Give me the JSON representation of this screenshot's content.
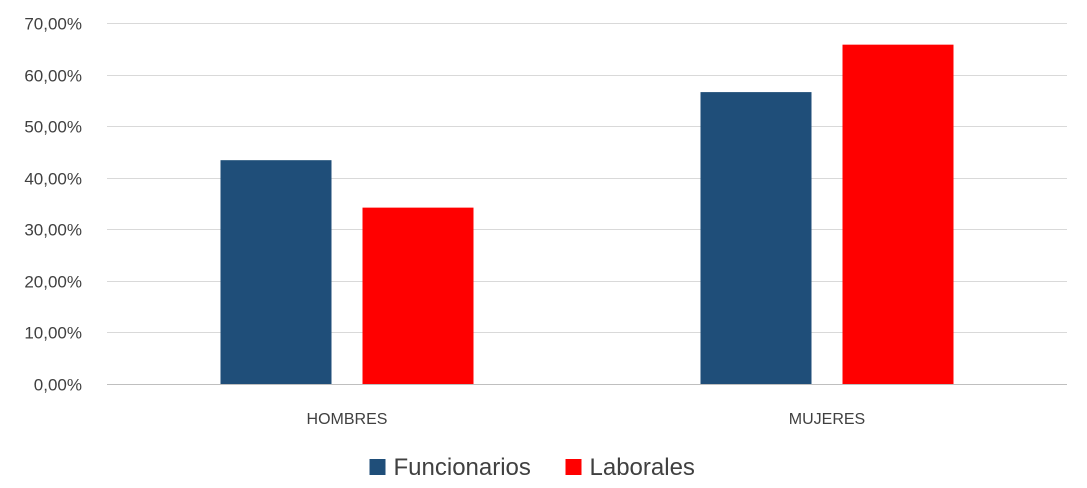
{
  "chart_data": {
    "type": "bar",
    "title": "",
    "xlabel": "",
    "ylabel": "",
    "categories": [
      "HOMBRES",
      "MUJERES"
    ],
    "series": [
      {
        "name": "Funcionarios",
        "color": "#1F4E79",
        "values": [
          43.4,
          56.6
        ]
      },
      {
        "name": "Laborales",
        "color": "#FF0000",
        "values": [
          34.2,
          65.8
        ]
      }
    ],
    "ylim": [
      0,
      70
    ],
    "yticks": [
      0,
      10,
      20,
      30,
      40,
      50,
      60,
      70
    ],
    "ytick_labels": [
      "0,00%",
      "10,00%",
      "20,00%",
      "30,00%",
      "40,00%",
      "50,00%",
      "60,00%",
      "70,00%"
    ],
    "grid": true,
    "gridline_color": "#D9D9D9",
    "legend": "bottom-center"
  }
}
